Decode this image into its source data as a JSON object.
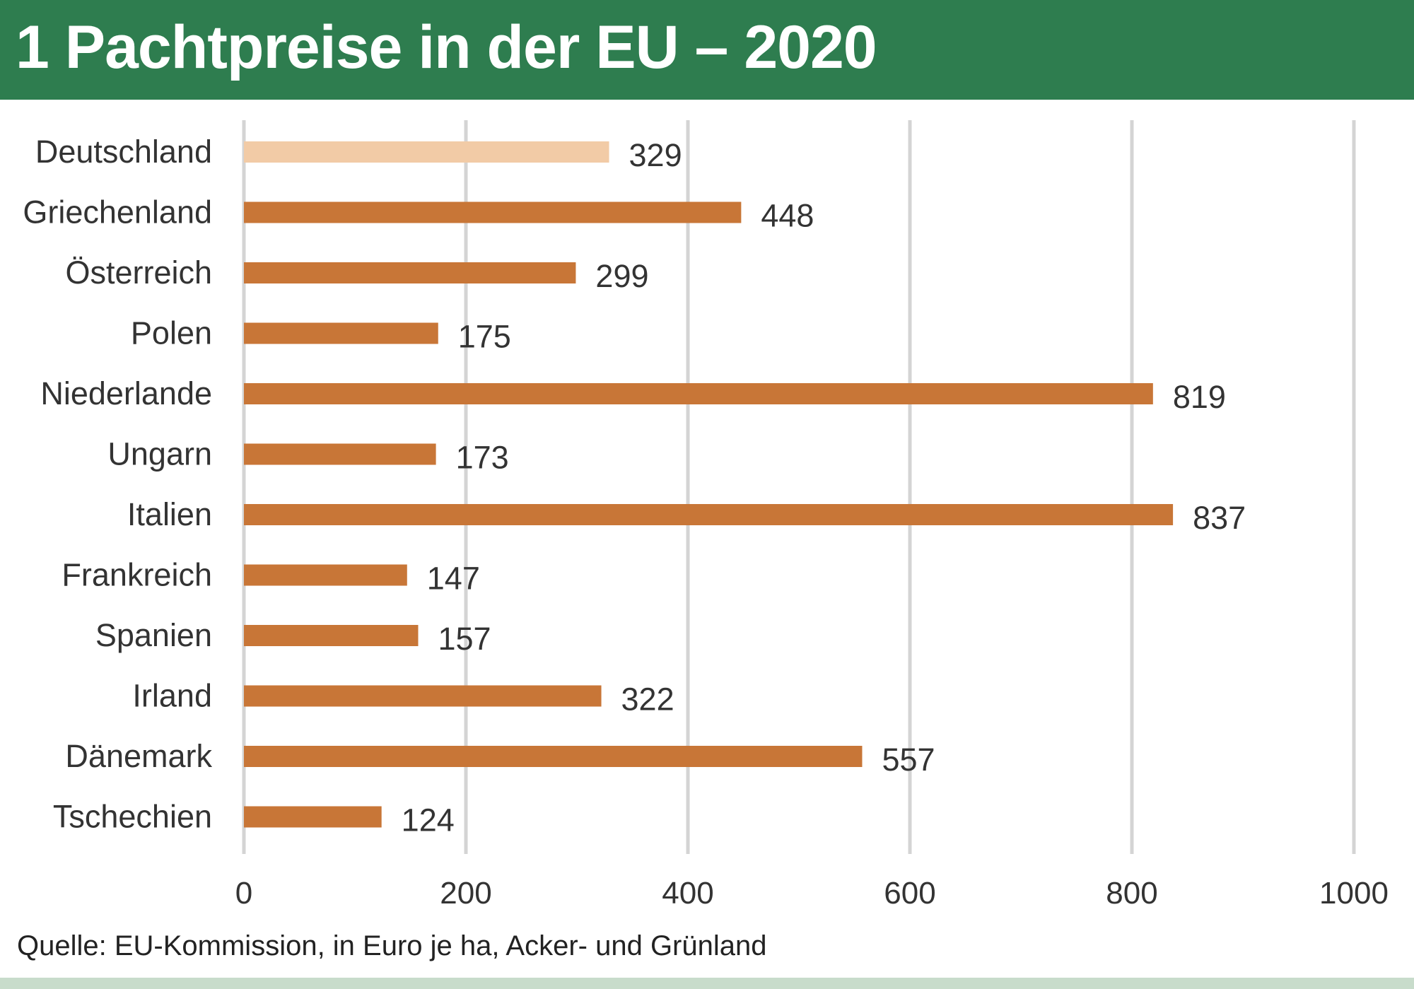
{
  "header": {
    "title": "1 Pachtpreise in der EU – 2020"
  },
  "footer": {
    "source": "Quelle: EU-Kommission, in Euro je ha, Acker- und Grünland"
  },
  "colors": {
    "header_bg": "#2e7d4f",
    "bar": "#c87637",
    "bar_highlight": "#f2cba6",
    "grid": "#d4d4d4",
    "bottom_band": "#c8dccb"
  },
  "chart_data": {
    "type": "bar",
    "orientation": "horizontal",
    "categories": [
      "Deutschland",
      "Griechenland",
      "Österreich",
      "Polen",
      "Niederlande",
      "Ungarn",
      "Italien",
      "Frankreich",
      "Spanien",
      "Irland",
      "Dänemark",
      "Tschechien"
    ],
    "values": [
      329,
      448,
      299,
      175,
      819,
      173,
      837,
      147,
      157,
      322,
      557,
      124
    ],
    "highlight": [
      "Deutschland"
    ],
    "xlim": [
      0,
      1000
    ],
    "xticks": [
      0,
      200,
      400,
      600,
      800,
      1000
    ],
    "grid": true,
    "legend": "none",
    "data_labels": true
  }
}
